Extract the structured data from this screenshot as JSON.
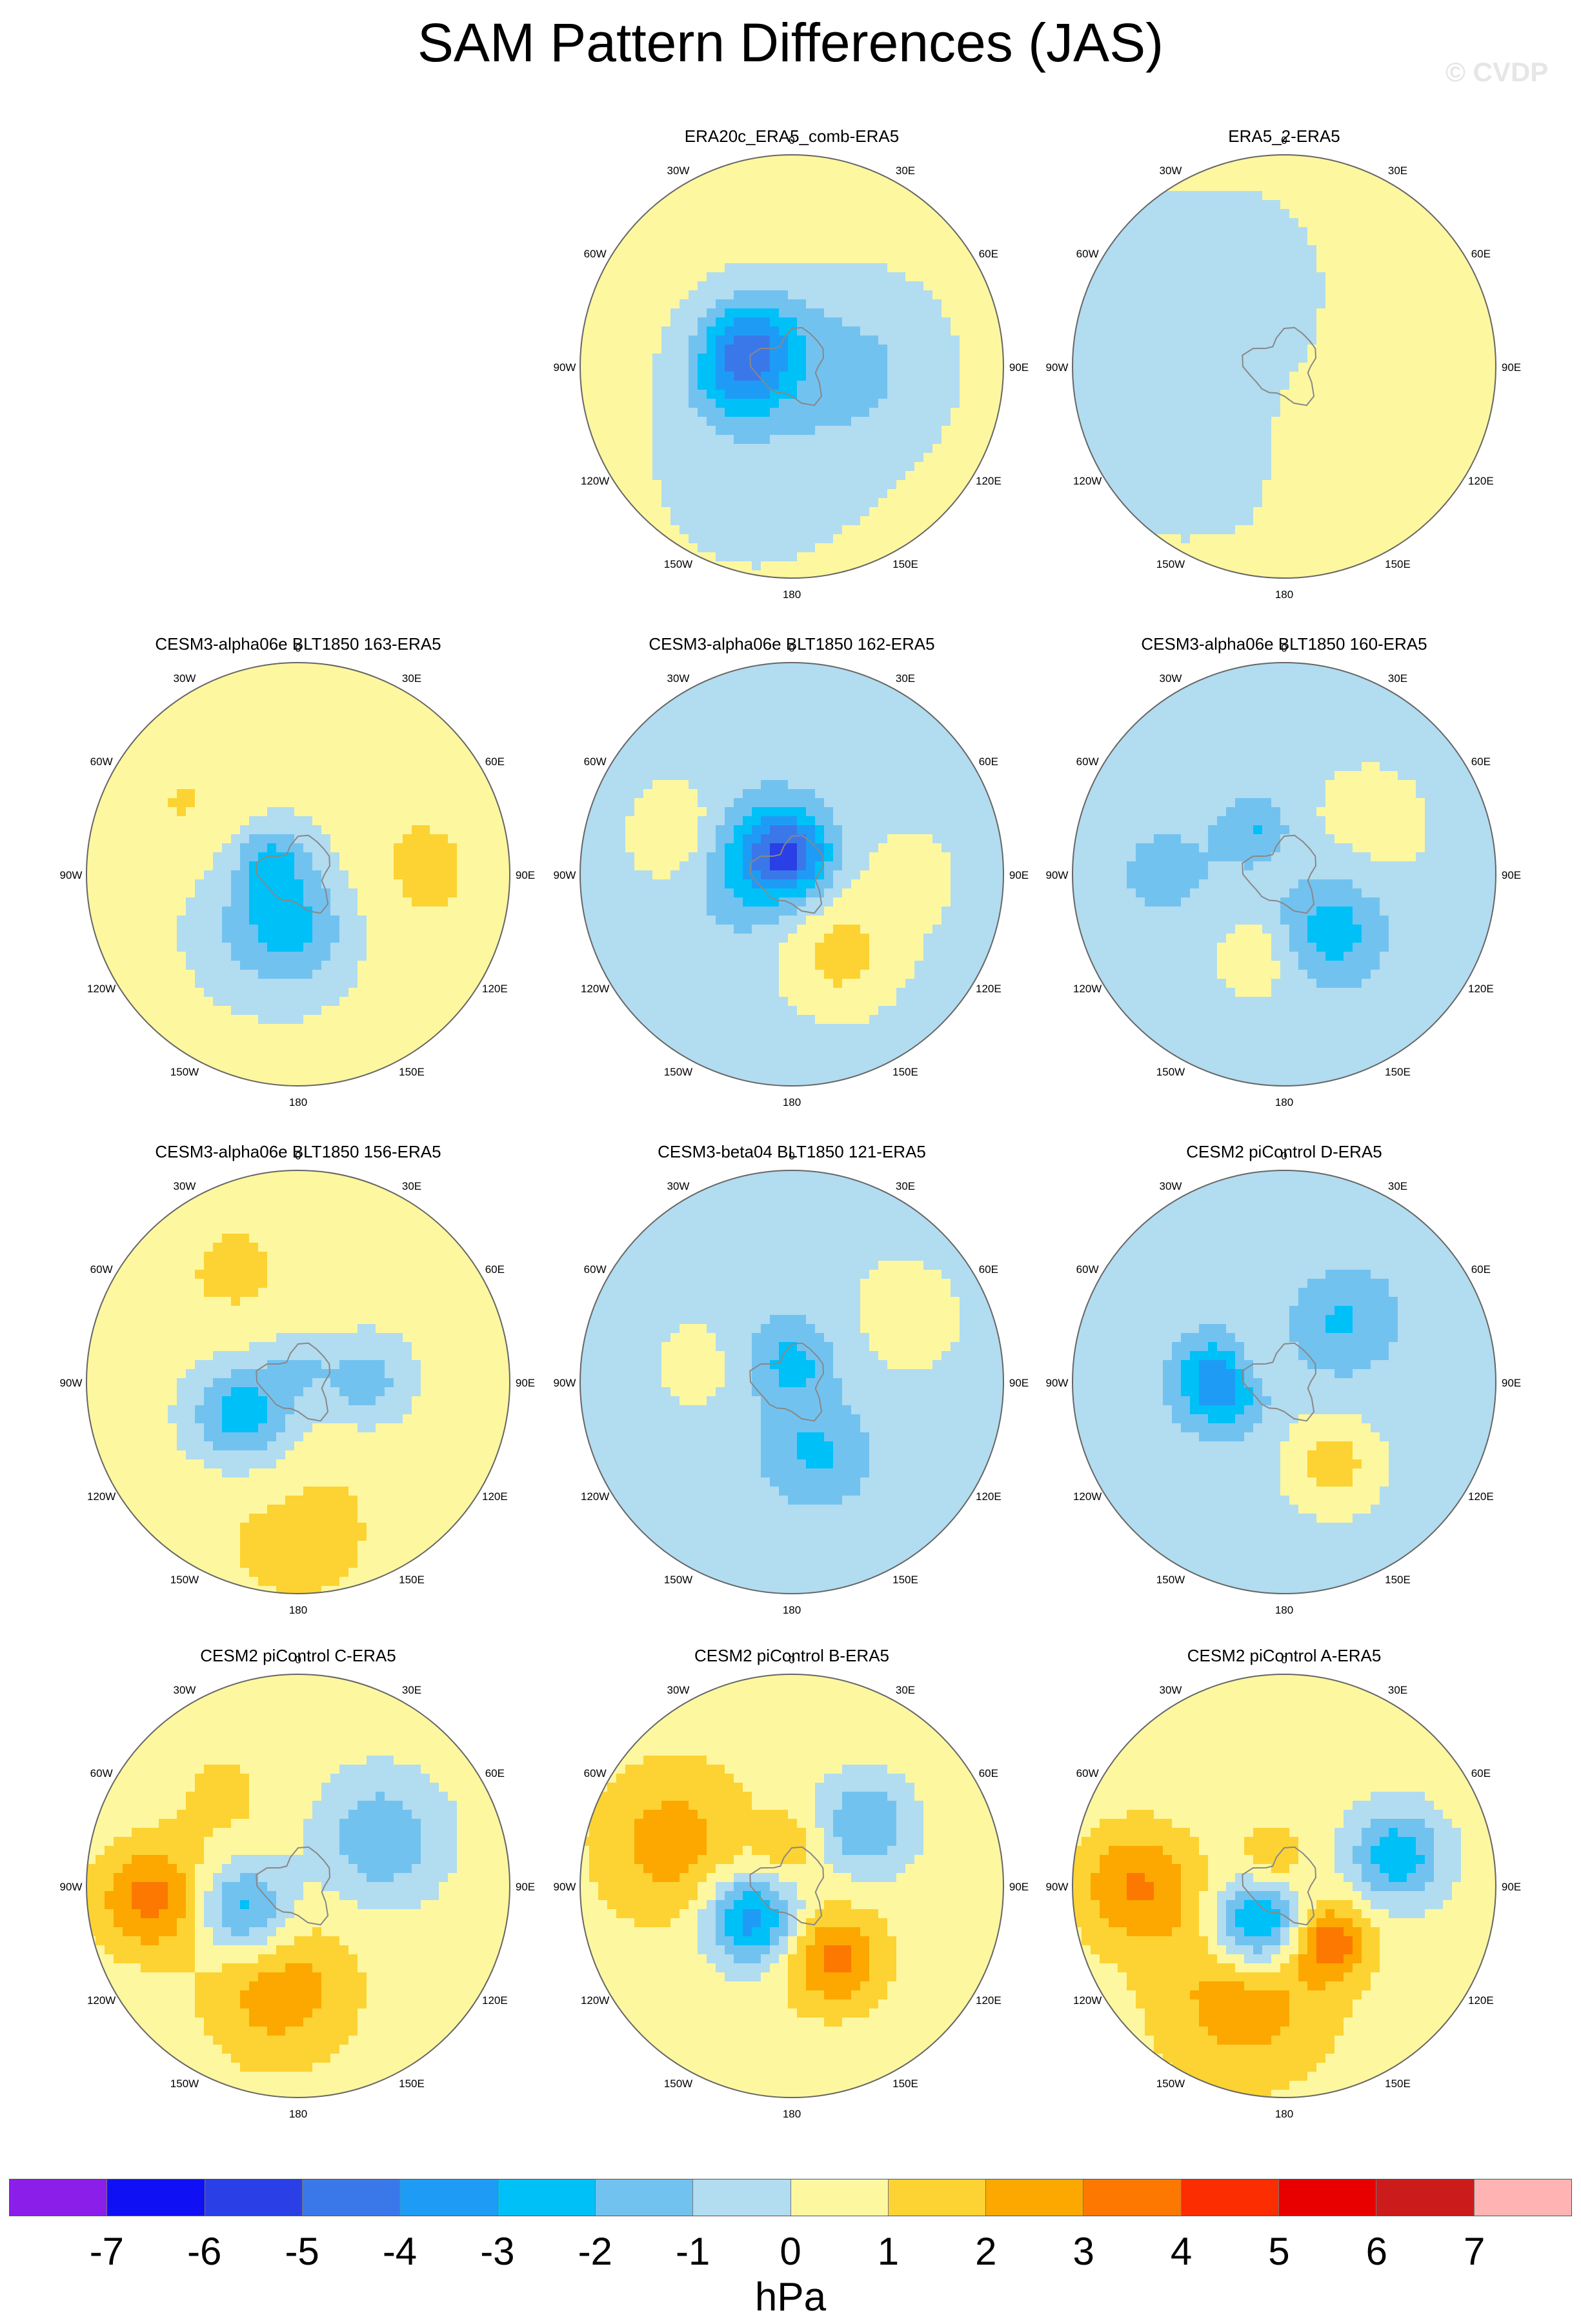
{
  "title": "SAM Pattern Differences (JAS)",
  "watermark": "© CVDP",
  "colors": {
    "levels": [
      "#8b1ee8",
      "#1010f5",
      "#2a3fe5",
      "#3a78ea",
      "#1e9cf5",
      "#00c0f8",
      "#72c2f0",
      "#b2dcf0",
      "#fdf7a0",
      "#fcd332",
      "#fca800",
      "#fc7800",
      "#fc2d00",
      "#e80000",
      "#cc1b1b",
      "#ffb3b3"
    ],
    "land_outline": "#888888",
    "panel_border": "#666666"
  },
  "colorbar": {
    "ticks": [
      "-7",
      "-6",
      "-5",
      "-4",
      "-3",
      "-2",
      "-1",
      "0",
      "1",
      "2",
      "3",
      "4",
      "5",
      "6",
      "7"
    ],
    "unit": "hPa"
  },
  "chart_data": {
    "type": "heatmap",
    "projection": "south-polar-stereographic",
    "variable": "SAM pattern difference (JAS)",
    "units": "hPa",
    "contour_levels": [
      -7,
      -6,
      -5,
      -4,
      -3,
      -2,
      -1,
      0,
      1,
      2,
      3,
      4,
      5,
      6,
      7
    ],
    "longitude_labels": [
      "0",
      "30E",
      "60E",
      "90E",
      "120E",
      "150E",
      "180",
      "150W",
      "120W",
      "90W",
      "60W",
      "30W"
    ],
    "panels": [
      {
        "title": "ERA20c_ERA5_comb-ERA5",
        "min": -3.5,
        "max": 0.6,
        "features": [
          [
            300,
            0.22,
            -3.3,
            0.17
          ],
          [
            255,
            0.28,
            -2.0,
            0.16
          ],
          [
            90,
            0.3,
            -1.5,
            0.3
          ],
          [
            200,
            0.5,
            -0.8,
            0.4
          ]
        ],
        "background": 0.4
      },
      {
        "title": "ERA5_2-ERA5",
        "min": -1.0,
        "max": 0.8,
        "features": [
          [
            270,
            0.45,
            -0.8,
            0.4
          ],
          [
            60,
            0.45,
            0.8,
            0.3
          ],
          [
            130,
            0.3,
            0.6,
            0.25
          ],
          [
            0,
            0.25,
            -0.8,
            0.25
          ]
        ],
        "background": 0.1
      },
      {
        "title": "CESM3-alpha06e BLT1850 163-ERA5",
        "min": -2.2,
        "max": 0.6,
        "features": [
          [
            190,
            0.25,
            -2.0,
            0.2
          ],
          [
            300,
            0.15,
            -1.8,
            0.12
          ],
          [
            220,
            0.2,
            -1.2,
            0.35
          ],
          [
            90,
            0.5,
            0.8,
            0.3
          ],
          [
            300,
            0.55,
            0.8,
            0.25
          ]
        ],
        "background": 0.5
      },
      {
        "title": "CESM3-alpha06e BLT1850 162-ERA5",
        "min": -3.6,
        "max": 1.9,
        "features": [
          [
            0,
            0.1,
            -3.5,
            0.13
          ],
          [
            290,
            0.2,
            -2.5,
            0.2
          ],
          [
            150,
            0.45,
            1.8,
            0.2
          ],
          [
            290,
            0.55,
            1.6,
            0.18
          ],
          [
            90,
            0.55,
            0.7,
            0.25
          ]
        ],
        "background": -0.5
      },
      {
        "title": "CESM3-alpha06e BLT1850 160-ERA5",
        "min": -2.3,
        "max": 1.4,
        "features": [
          [
            140,
            0.35,
            -2.3,
            0.18
          ],
          [
            200,
            0.4,
            1.3,
            0.15
          ],
          [
            330,
            0.25,
            -1.5,
            0.1
          ],
          [
            60,
            0.45,
            0.6,
            0.25
          ],
          [
            270,
            0.55,
            -0.8,
            0.35
          ]
        ],
        "background": -0.3
      },
      {
        "title": "CESM3-alpha06e BLT1850 156-ERA5",
        "min": -3.3,
        "max": 0.8,
        "features": [
          [
            240,
            0.3,
            -3.2,
            0.18
          ],
          [
            90,
            0.32,
            -2.0,
            0.15
          ],
          [
            0,
            0.1,
            -1.2,
            0.12
          ],
          [
            180,
            0.7,
            0.8,
            0.4
          ],
          [
            330,
            0.6,
            0.7,
            0.3
          ]
        ],
        "background": 0.4
      },
      {
        "title": "CESM3-beta04 BLT1850 121-ERA5",
        "min": -2.0,
        "max": 0.6,
        "features": [
          [
            0,
            0.1,
            -2.0,
            0.15
          ],
          [
            160,
            0.35,
            -1.8,
            0.18
          ],
          [
            280,
            0.45,
            0.7,
            0.18
          ],
          [
            60,
            0.6,
            0.6,
            0.3
          ]
        ],
        "background": -0.4
      },
      {
        "title": "CESM2 piControl D-ERA5",
        "min": -3.8,
        "max": 2.1,
        "features": [
          [
            270,
            0.3,
            -3.7,
            0.14
          ],
          [
            150,
            0.45,
            2.0,
            0.16
          ],
          [
            300,
            0.15,
            1.5,
            0.1
          ],
          [
            40,
            0.4,
            -1.8,
            0.18
          ],
          [
            0,
            0.55,
            0.5,
            0.25
          ]
        ],
        "background": -0.5
      },
      {
        "title": "CESM2 piControl C-ERA5",
        "min": -3.2,
        "max": 3.1,
        "features": [
          [
            245,
            0.28,
            -3.1,
            0.16
          ],
          [
            265,
            0.7,
            3.0,
            0.18
          ],
          [
            190,
            0.5,
            2.2,
            0.25
          ],
          [
            60,
            0.45,
            -2.3,
            0.2
          ],
          [
            320,
            0.55,
            0.8,
            0.2
          ]
        ],
        "background": 0.4
      },
      {
        "title": "CESM2 piControl B-ERA5",
        "min": -4.2,
        "max": 3.0,
        "features": [
          [
            230,
            0.25,
            -4.1,
            0.15
          ],
          [
            150,
            0.4,
            2.9,
            0.16
          ],
          [
            290,
            0.6,
            2.0,
            0.25
          ],
          [
            50,
            0.45,
            -2.5,
            0.16
          ],
          [
            0,
            0.2,
            1.4,
            0.1
          ]
        ],
        "background": 0.5
      },
      {
        "title": "CESM2 piControl A-ERA5",
        "min": -4.5,
        "max": 3.2,
        "features": [
          [
            215,
            0.22,
            -4.4,
            0.15
          ],
          [
            75,
            0.55,
            -3.2,
            0.15
          ],
          [
            140,
            0.35,
            3.1,
            0.12
          ],
          [
            270,
            0.7,
            2.6,
            0.2
          ],
          [
            200,
            0.55,
            2.2,
            0.3
          ],
          [
            340,
            0.15,
            1.5,
            0.1
          ]
        ],
        "background": 0.4
      }
    ]
  }
}
